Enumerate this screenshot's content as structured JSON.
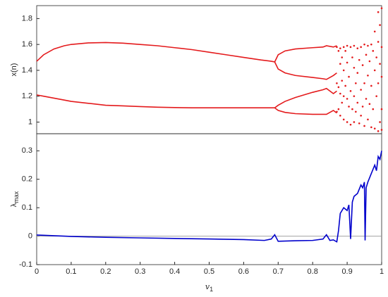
{
  "chart_data": [
    {
      "type": "scatter",
      "ylabel": "x(n)",
      "xlim": [
        0,
        1
      ],
      "ylim": [
        0.91,
        1.9
      ],
      "yticks": [
        1,
        1.2,
        1.4,
        1.6,
        1.8
      ],
      "series": [
        {
          "color": "#e41a1c",
          "style": "line",
          "x": [
            0,
            0.02,
            0.05,
            0.08,
            0.1,
            0.15,
            0.2,
            0.25,
            0.3,
            0.35,
            0.4,
            0.45,
            0.5,
            0.55,
            0.6,
            0.65,
            0.68,
            0.69
          ],
          "values": [
            1.47,
            1.52,
            1.565,
            1.59,
            1.6,
            1.612,
            1.615,
            1.61,
            1.6,
            1.59,
            1.575,
            1.56,
            1.54,
            1.52,
            1.5,
            1.48,
            1.47,
            1.465
          ]
        },
        {
          "color": "#e41a1c",
          "style": "line",
          "x": [
            0,
            0.02,
            0.05,
            0.08,
            0.1,
            0.15,
            0.2,
            0.25,
            0.3,
            0.35,
            0.4,
            0.45,
            0.5,
            0.55,
            0.6,
            0.65,
            0.68,
            0.69
          ],
          "values": [
            1.21,
            1.2,
            1.185,
            1.17,
            1.16,
            1.145,
            1.13,
            1.125,
            1.12,
            1.115,
            1.112,
            1.11,
            1.11,
            1.11,
            1.11,
            1.11,
            1.11,
            1.11
          ]
        },
        {
          "color": "#e41a1c",
          "style": "line",
          "x": [
            0.69,
            0.7,
            0.72,
            0.75,
            0.8,
            0.83,
            0.84,
            0.86,
            0.87
          ],
          "values": [
            1.465,
            1.52,
            1.55,
            1.565,
            1.575,
            1.58,
            1.59,
            1.58,
            1.59
          ]
        },
        {
          "color": "#e41a1c",
          "style": "line",
          "x": [
            0.69,
            0.7,
            0.72,
            0.75,
            0.8,
            0.83,
            0.84,
            0.86,
            0.87
          ],
          "values": [
            1.465,
            1.41,
            1.38,
            1.36,
            1.345,
            1.335,
            1.33,
            1.36,
            1.38
          ]
        },
        {
          "color": "#e41a1c",
          "style": "line",
          "x": [
            0.69,
            0.7,
            0.72,
            0.75,
            0.8,
            0.83,
            0.84,
            0.86,
            0.87
          ],
          "values": [
            1.11,
            1.13,
            1.16,
            1.19,
            1.23,
            1.25,
            1.26,
            1.22,
            1.24
          ]
        },
        {
          "color": "#e41a1c",
          "style": "line",
          "x": [
            0.69,
            0.7,
            0.72,
            0.75,
            0.8,
            0.83,
            0.84,
            0.86,
            0.87
          ],
          "values": [
            1.11,
            1.09,
            1.075,
            1.065,
            1.06,
            1.06,
            1.06,
            1.09,
            1.07
          ]
        },
        {
          "color": "#e41a1c",
          "style": "dots",
          "x": [
            0.87,
            0.87,
            0.87,
            0.875,
            0.875,
            0.875,
            0.88,
            0.88,
            0.88,
            0.88,
            0.885,
            0.885,
            0.885,
            0.89,
            0.89,
            0.89,
            0.89,
            0.895,
            0.895,
            0.9,
            0.9,
            0.9,
            0.9,
            0.905,
            0.905,
            0.91,
            0.91,
            0.91,
            0.915,
            0.915,
            0.92,
            0.92,
            0.92,
            0.92,
            0.925,
            0.925,
            0.93,
            0.93,
            0.93,
            0.935,
            0.935,
            0.94,
            0.94,
            0.94,
            0.945,
            0.945,
            0.95,
            0.95,
            0.95,
            0.955,
            0.955,
            0.96,
            0.96,
            0.96,
            0.965,
            0.965,
            0.97,
            0.97,
            0.97,
            0.975,
            0.975,
            0.98,
            0.98,
            0.98,
            0.985,
            0.985,
            0.99,
            0.99,
            0.99,
            0.99,
            0.995,
            0.995,
            0.995,
            1,
            1,
            1,
            1,
            1
          ],
          "values": [
            1.58,
            1.3,
            1.08,
            1.55,
            1.27,
            1.1,
            1.57,
            1.45,
            1.22,
            1.05,
            1.5,
            1.32,
            1.15,
            1.58,
            1.4,
            1.2,
            1.02,
            1.55,
            1.28,
            1.59,
            1.46,
            1.18,
            1.0,
            1.35,
            1.12,
            1.58,
            1.24,
            0.98,
            1.5,
            1.1,
            1.59,
            1.42,
            1.2,
            1.0,
            1.3,
            1.08,
            1.57,
            1.38,
            1.15,
            1.48,
            0.99,
            1.58,
            1.25,
            1.05,
            1.44,
            1.12,
            1.6,
            1.3,
            0.97,
            1.52,
            1.18,
            1.59,
            1.36,
            1.02,
            1.47,
            1.14,
            1.6,
            1.28,
            0.96,
            1.55,
            1.1,
            1.7,
            1.4,
            0.95,
            1.5,
            1.2,
            1.85,
            1.62,
            1.3,
            0.93,
            1.75,
            1.45,
            1.0,
            1.88,
            1.58,
            1.35,
            1.1,
            0.94
          ]
        }
      ]
    },
    {
      "type": "line",
      "xlabel": {
        "text": "v",
        "subscript": "1"
      },
      "ylabel": {
        "text": "λ",
        "subscript": "max"
      },
      "xlim": [
        0,
        1
      ],
      "xticks": [
        0,
        0.1,
        0.2,
        0.3,
        0.4,
        0.5,
        0.6,
        0.7,
        0.8,
        0.9,
        1
      ],
      "ylim": [
        -0.1,
        0.36
      ],
      "yticks": [
        -0.1,
        0,
        0.1,
        0.2,
        0.3
      ],
      "zero_line": true,
      "color": "#0000cc",
      "x": [
        0,
        0.02,
        0.1,
        0.2,
        0.3,
        0.4,
        0.5,
        0.6,
        0.66,
        0.68,
        0.69,
        0.7,
        0.75,
        0.8,
        0.83,
        0.84,
        0.85,
        0.86,
        0.87,
        0.875,
        0.88,
        0.89,
        0.9,
        0.905,
        0.91,
        0.915,
        0.92,
        0.93,
        0.94,
        0.945,
        0.95,
        0.952,
        0.955,
        0.96,
        0.97,
        0.98,
        0.985,
        0.99,
        0.995,
        1
      ],
      "values": [
        0.004,
        0.003,
        -0.001,
        -0.004,
        -0.006,
        -0.008,
        -0.01,
        -0.012,
        -0.015,
        -0.01,
        0.005,
        -0.018,
        -0.016,
        -0.015,
        -0.01,
        0.005,
        -0.015,
        -0.013,
        -0.02,
        0.02,
        0.08,
        0.1,
        0.09,
        0.11,
        -0.01,
        0.12,
        0.14,
        0.15,
        0.18,
        0.17,
        0.19,
        -0.015,
        0.17,
        0.19,
        0.22,
        0.25,
        0.23,
        0.28,
        0.27,
        0.3
      ]
    }
  ]
}
